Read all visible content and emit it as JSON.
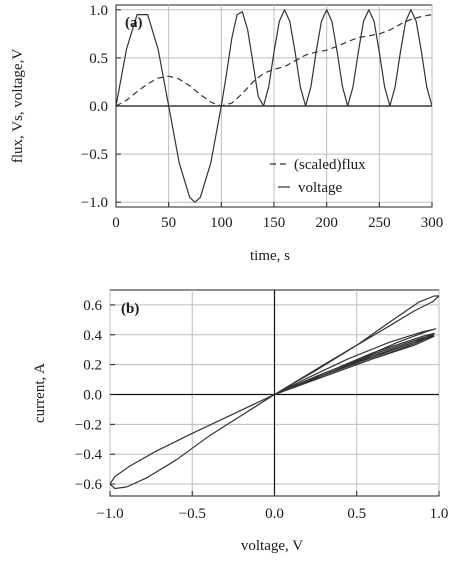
{
  "chart_data": [
    {
      "panel_label": "(a)",
      "type": "line",
      "xlabel": "time, s",
      "ylabel": "flux, Vs, voltage,V",
      "xlim": [
        0,
        300
      ],
      "ylim": [
        -1.05,
        1.05
      ],
      "xticks": [
        0,
        50,
        100,
        150,
        200,
        250,
        300
      ],
      "xtick_labels": [
        "0",
        "50",
        "100",
        "150",
        "200",
        "250",
        "300"
      ],
      "yticks": [
        -1.0,
        -0.5,
        0.0,
        0.5,
        1.0
      ],
      "ytick_labels": [
        "−1.0",
        "−0.5",
        "0.0",
        "0.5",
        "1.0"
      ],
      "grid": true,
      "legend_position": "bottom-right",
      "series": [
        {
          "name": "(scaled)flux",
          "style": "dashed",
          "x": [
            0,
            10,
            20,
            30,
            40,
            50,
            60,
            70,
            80,
            90,
            100,
            110,
            120,
            130,
            140,
            150,
            160,
            170,
            180,
            190,
            200,
            210,
            220,
            230,
            240,
            250,
            260,
            270,
            280,
            290,
            300
          ],
          "y": [
            0.0,
            0.06,
            0.15,
            0.23,
            0.29,
            0.31,
            0.28,
            0.21,
            0.12,
            0.04,
            0.0,
            0.03,
            0.13,
            0.25,
            0.34,
            0.38,
            0.41,
            0.47,
            0.53,
            0.56,
            0.58,
            0.62,
            0.67,
            0.71,
            0.73,
            0.75,
            0.79,
            0.85,
            0.9,
            0.93,
            0.95
          ]
        },
        {
          "name": "voltage",
          "style": "solid",
          "x": [
            0,
            10,
            20,
            30,
            40,
            50,
            60,
            70,
            75,
            80,
            90,
            100,
            105,
            110,
            115,
            120,
            125,
            130,
            135,
            140,
            145,
            150,
            155,
            160,
            165,
            170,
            175,
            180,
            185,
            190,
            195,
            200,
            205,
            210,
            215,
            220,
            225,
            230,
            235,
            240,
            245,
            250,
            255,
            260,
            265,
            270,
            275,
            280,
            285,
            290,
            295,
            300
          ],
          "y": [
            0.0,
            0.59,
            0.95,
            0.95,
            0.59,
            0.0,
            -0.59,
            -0.95,
            -1.0,
            -0.95,
            -0.59,
            0.0,
            0.34,
            0.71,
            0.95,
            0.98,
            0.79,
            0.45,
            0.1,
            0.0,
            0.2,
            0.56,
            0.88,
            1.0,
            0.88,
            0.56,
            0.2,
            0.0,
            0.2,
            0.56,
            0.88,
            1.0,
            0.88,
            0.56,
            0.2,
            0.0,
            0.2,
            0.56,
            0.88,
            1.0,
            0.88,
            0.56,
            0.2,
            0.0,
            0.2,
            0.56,
            0.88,
            1.0,
            0.88,
            0.56,
            0.2,
            0.0
          ]
        }
      ]
    },
    {
      "panel_label": "(b)",
      "type": "line",
      "xlabel": "voltage, V",
      "ylabel": "current, A",
      "xlim": [
        -1.0,
        1.0
      ],
      "ylim": [
        -0.68,
        0.7
      ],
      "xticks": [
        -1.0,
        -0.5,
        0.0,
        0.5,
        1.0
      ],
      "xtick_labels": [
        "−1.0",
        "−0.5",
        "0.0",
        "0.5",
        "1.0"
      ],
      "yticks": [
        -0.6,
        -0.4,
        -0.2,
        0.0,
        0.2,
        0.4,
        0.6
      ],
      "ytick_labels": [
        "−0.6",
        "−0.4",
        "−0.2",
        "0.0",
        "0.2",
        "0.4",
        "0.6"
      ],
      "grid": true,
      "series": [
        {
          "name": "",
          "style": "solid",
          "x": [
            0.0,
            0.25,
            0.5,
            0.72,
            0.88,
            0.97,
            1.0,
            0.96,
            0.85,
            0.7,
            0.5,
            0.3,
            0.12,
            0.0,
            -0.2,
            -0.4,
            -0.6,
            -0.78,
            -0.9,
            -0.97,
            -1.0,
            -0.97,
            -0.88,
            -0.72,
            -0.5,
            -0.25,
            0.0,
            0.25,
            0.5,
            0.75,
            0.92,
            0.98,
            0.9,
            0.7,
            0.45,
            0.2,
            0.0,
            0.3,
            0.6,
            0.85,
            0.97,
            0.9,
            0.6,
            0.3,
            0.0,
            0.3,
            0.6,
            0.85,
            0.97,
            0.9,
            0.6,
            0.3,
            0.0,
            0.3,
            0.6,
            0.85,
            0.97,
            0.9,
            0.6,
            0.3,
            0.0
          ],
          "y": [
            0.0,
            0.16,
            0.33,
            0.5,
            0.62,
            0.66,
            0.66,
            0.62,
            0.56,
            0.46,
            0.33,
            0.2,
            0.08,
            0.0,
            -0.14,
            -0.28,
            -0.44,
            -0.56,
            -0.62,
            -0.63,
            -0.6,
            -0.55,
            -0.48,
            -0.38,
            -0.26,
            -0.13,
            0.0,
            0.12,
            0.23,
            0.35,
            0.42,
            0.44,
            0.42,
            0.35,
            0.24,
            0.11,
            0.0,
            0.13,
            0.25,
            0.35,
            0.41,
            0.39,
            0.28,
            0.14,
            0.0,
            0.12,
            0.24,
            0.34,
            0.4,
            0.38,
            0.27,
            0.13,
            0.0,
            0.12,
            0.24,
            0.33,
            0.39,
            0.37,
            0.26,
            0.13,
            0.0
          ]
        }
      ]
    }
  ]
}
